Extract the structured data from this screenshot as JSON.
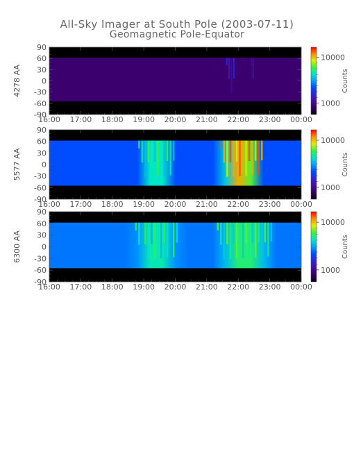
{
  "figure": {
    "title": "All-Sky Imager at South Pole (2003-07-11)",
    "subtitle": "Geomagnetic Pole-Equator"
  },
  "chart_data": [
    {
      "type": "heatmap",
      "ylabel": "4278 AA",
      "x_ticks": [
        "16:00",
        "17:00",
        "18:00",
        "19:00",
        "20:00",
        "21:00",
        "22:00",
        "23:00",
        "00:00"
      ],
      "y_ticks": [
        90,
        60,
        30,
        0,
        -30,
        -60,
        -90
      ],
      "xlim": [
        "16:00",
        "00:00"
      ],
      "ylim": [
        -90,
        90
      ],
      "colorbar": {
        "label": "Counts",
        "scale": "log",
        "ticks": [
          "10000",
          "1000"
        ]
      },
      "intensity": {
        "background": 0.12,
        "regions": [
          [
            21.6,
            21.9,
            0.35
          ],
          [
            22.4,
            22.5,
            0.3
          ]
        ]
      }
    },
    {
      "type": "heatmap",
      "ylabel": "5577 AA",
      "x_ticks": [
        "16:00",
        "17:00",
        "18:00",
        "19:00",
        "20:00",
        "21:00",
        "22:00",
        "23:00",
        "00:00"
      ],
      "y_ticks": [
        90,
        60,
        30,
        0,
        -30,
        -60,
        -90
      ],
      "xlim": [
        "16:00",
        "00:00"
      ],
      "ylim": [
        -90,
        90
      ],
      "colorbar": {
        "label": "Counts",
        "scale": "log",
        "ticks": [
          "10000",
          "1000"
        ]
      },
      "intensity": {
        "background": 0.4,
        "regions": [
          [
            18.8,
            20.0,
            0.7
          ],
          [
            21.4,
            22.8,
            0.95
          ]
        ]
      }
    },
    {
      "type": "heatmap",
      "ylabel": "6300 AA",
      "x_ticks": [
        "16:00",
        "17:00",
        "18:00",
        "19:00",
        "20:00",
        "21:00",
        "22:00",
        "23:00",
        "00:00"
      ],
      "y_ticks": [
        90,
        60,
        30,
        0,
        -30,
        -60,
        -90
      ],
      "xlim": [
        "16:00",
        "00:00"
      ],
      "ylim": [
        -90,
        90
      ],
      "colorbar": {
        "label": "Counts",
        "scale": "log",
        "ticks": [
          "10000",
          "1000"
        ]
      },
      "intensity": {
        "background": 0.45,
        "regions": [
          [
            18.7,
            20.1,
            0.68
          ],
          [
            21.3,
            23.1,
            0.72
          ]
        ]
      }
    }
  ],
  "colors": {
    "axis": "#555555",
    "night": "#000000",
    "low": "#3a0066",
    "mid": "#0040ff",
    "high": "#ff0000"
  }
}
